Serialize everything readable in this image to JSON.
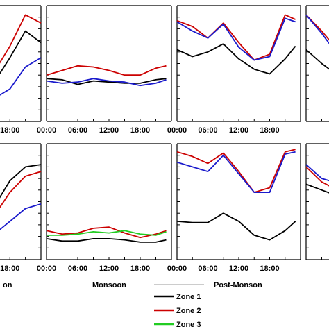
{
  "chart_data": [
    {
      "type": "line",
      "panel": "top-col1-partial",
      "x_ticks": [
        "18:00"
      ],
      "series": [
        {
          "name": "Zone 1",
          "color": "#000000",
          "x": [
            0,
            3,
            6,
            9,
            12,
            15,
            18,
            21,
            24
          ],
          "y": [
            0.62,
            0.5,
            0.4,
            0.33,
            0.32,
            0.34,
            0.55,
            0.78,
            0.68
          ]
        },
        {
          "name": "Zone 2",
          "color": "#cc0000",
          "x": [
            0,
            3,
            6,
            9,
            12,
            15,
            18,
            21,
            24
          ],
          "y": [
            0.7,
            0.62,
            0.48,
            0.42,
            0.42,
            0.43,
            0.65,
            0.92,
            0.85
          ]
        },
        {
          "name": "Zone 3",
          "color": "#1a1acc",
          "x": [
            0,
            3,
            6,
            9,
            12,
            15,
            18,
            21,
            24
          ],
          "y": [
            0.55,
            0.42,
            0.33,
            0.25,
            0.2,
            0.2,
            0.28,
            0.47,
            0.55
          ]
        }
      ]
    },
    {
      "type": "line",
      "panel": "top-monsoon",
      "x_ticks": [
        "00:00",
        "06:00",
        "12:00",
        "18:00"
      ],
      "series": [
        {
          "name": "Zone 1",
          "color": "#000000",
          "x": [
            0,
            3,
            6,
            9,
            12,
            15,
            18,
            21,
            23
          ],
          "y": [
            0.37,
            0.36,
            0.32,
            0.35,
            0.34,
            0.33,
            0.33,
            0.36,
            0.37
          ]
        },
        {
          "name": "Zone 2",
          "color": "#cc0000",
          "x": [
            0,
            3,
            6,
            9,
            12,
            15,
            18,
            21,
            23
          ],
          "y": [
            0.4,
            0.44,
            0.48,
            0.47,
            0.44,
            0.4,
            0.4,
            0.46,
            0.48
          ]
        },
        {
          "name": "Zone 3",
          "color": "#1a1acc",
          "x": [
            0,
            3,
            6,
            9,
            12,
            15,
            18,
            21,
            23
          ],
          "y": [
            0.35,
            0.33,
            0.34,
            0.37,
            0.35,
            0.34,
            0.31,
            0.33,
            0.36
          ]
        }
      ]
    },
    {
      "type": "line",
      "panel": "top-post-monson",
      "x_ticks": [
        "00:00",
        "06:00",
        "12:00",
        "18:00"
      ],
      "series": [
        {
          "name": "Zone 1",
          "color": "#000000",
          "x": [
            0,
            3,
            6,
            9,
            12,
            15,
            18,
            21,
            23
          ],
          "y": [
            0.62,
            0.56,
            0.6,
            0.67,
            0.54,
            0.45,
            0.41,
            0.54,
            0.65
          ]
        },
        {
          "name": "Zone 2",
          "color": "#cc0000",
          "x": [
            0,
            3,
            6,
            9,
            12,
            15,
            18,
            21,
            23
          ],
          "y": [
            0.87,
            0.82,
            0.72,
            0.85,
            0.68,
            0.53,
            0.58,
            0.92,
            0.88
          ]
        },
        {
          "name": "Zone 3",
          "color": "#1a1acc",
          "x": [
            0,
            3,
            6,
            9,
            12,
            15,
            18,
            21,
            23
          ],
          "y": [
            0.86,
            0.78,
            0.72,
            0.84,
            0.64,
            0.53,
            0.56,
            0.89,
            0.86
          ]
        }
      ]
    },
    {
      "type": "line",
      "panel": "top-col4-partial",
      "series": [
        {
          "name": "Zone 1",
          "color": "#000000",
          "x": [
            0,
            3,
            6
          ],
          "y": [
            0.62,
            0.5,
            0.4
          ]
        },
        {
          "name": "Zone 2",
          "color": "#cc0000",
          "x": [
            0,
            3,
            6
          ],
          "y": [
            0.92,
            0.78,
            0.62
          ]
        },
        {
          "name": "Zone 3",
          "color": "#1a1acc",
          "x": [
            0,
            3,
            6
          ],
          "y": [
            0.92,
            0.76,
            0.58
          ]
        }
      ]
    },
    {
      "type": "line",
      "panel": "bottom-col1-partial",
      "x_ticks": [
        "18:00"
      ],
      "series": [
        {
          "name": "Zone 1",
          "color": "#000000",
          "x": [
            0,
            3,
            6,
            9,
            12,
            15,
            18,
            21,
            24
          ],
          "y": [
            0.3,
            0.25,
            0.21,
            0.21,
            0.28,
            0.46,
            0.68,
            0.8,
            0.82
          ]
        },
        {
          "name": "Zone 2",
          "color": "#cc0000",
          "x": [
            0,
            3,
            6,
            9,
            12,
            15,
            18,
            21,
            24
          ],
          "y": [
            0.3,
            0.22,
            0.16,
            0.17,
            0.24,
            0.38,
            0.58,
            0.72,
            0.76
          ]
        },
        {
          "name": "Zone 3",
          "color": "#1a1acc",
          "x": [
            0,
            3,
            6,
            9,
            12,
            15,
            18,
            21,
            24
          ],
          "y": [
            0.25,
            0.17,
            0.12,
            0.11,
            0.14,
            0.22,
            0.33,
            0.44,
            0.48
          ]
        }
      ]
    },
    {
      "type": "line",
      "panel": "bottom-monsoon",
      "x_ticks": [
        "00:00",
        "06:00",
        "12:00",
        "18:00"
      ],
      "series": [
        {
          "name": "Zone 1",
          "color": "#000000",
          "x": [
            0,
            3,
            6,
            9,
            12,
            15,
            18,
            21,
            23
          ],
          "y": [
            0.18,
            0.16,
            0.16,
            0.18,
            0.18,
            0.17,
            0.15,
            0.15,
            0.17
          ]
        },
        {
          "name": "Zone 2",
          "color": "#cc0000",
          "x": [
            0,
            3,
            6,
            9,
            12,
            15,
            18,
            21,
            23
          ],
          "y": [
            0.25,
            0.22,
            0.23,
            0.27,
            0.28,
            0.23,
            0.19,
            0.22,
            0.25
          ]
        },
        {
          "name": "Zone 3",
          "color": "#22cc22",
          "x": [
            0,
            3,
            6,
            9,
            12,
            15,
            18,
            21,
            23
          ],
          "y": [
            0.21,
            0.21,
            0.22,
            0.24,
            0.23,
            0.25,
            0.22,
            0.21,
            0.24
          ]
        }
      ]
    },
    {
      "type": "line",
      "panel": "bottom-post-monson",
      "x_ticks": [
        "00:00",
        "06:00",
        "12:00",
        "18:00"
      ],
      "series": [
        {
          "name": "Zone 1",
          "color": "#000000",
          "x": [
            0,
            3,
            6,
            9,
            12,
            15,
            18,
            21,
            23
          ],
          "y": [
            0.33,
            0.32,
            0.32,
            0.4,
            0.33,
            0.21,
            0.17,
            0.25,
            0.33
          ]
        },
        {
          "name": "Zone 2",
          "color": "#cc0000",
          "x": [
            0,
            3,
            6,
            9,
            12,
            15,
            18,
            21,
            23
          ],
          "y": [
            0.93,
            0.89,
            0.83,
            0.92,
            0.76,
            0.58,
            0.62,
            0.93,
            0.95
          ]
        },
        {
          "name": "Zone 3",
          "color": "#1a1acc",
          "x": [
            0,
            3,
            6,
            9,
            12,
            15,
            18,
            21,
            23
          ],
          "y": [
            0.84,
            0.8,
            0.76,
            0.9,
            0.74,
            0.58,
            0.58,
            0.91,
            0.93
          ]
        }
      ]
    },
    {
      "type": "line",
      "panel": "bottom-col4-partial",
      "series": [
        {
          "name": "Zone 1",
          "color": "#000000",
          "x": [
            0,
            3,
            6
          ],
          "y": [
            0.65,
            0.6,
            0.55
          ]
        },
        {
          "name": "Zone 2",
          "color": "#cc0000",
          "x": [
            0,
            3,
            6
          ],
          "y": [
            0.8,
            0.67,
            0.6
          ]
        },
        {
          "name": "Zone 3",
          "color": "#1a1acc",
          "x": [
            0,
            3,
            6
          ],
          "y": [
            0.82,
            0.7,
            0.66
          ]
        }
      ]
    }
  ],
  "labels": {
    "season_left": "on",
    "season_monsoon": "Monsoon",
    "season_post": "Post-Monson"
  },
  "legend": [
    {
      "label": "Zone 1",
      "color": "#000000"
    },
    {
      "label": "Zone 2",
      "color": "#cc0000"
    },
    {
      "label": "Zone 3",
      "color": "#22cc22"
    }
  ]
}
